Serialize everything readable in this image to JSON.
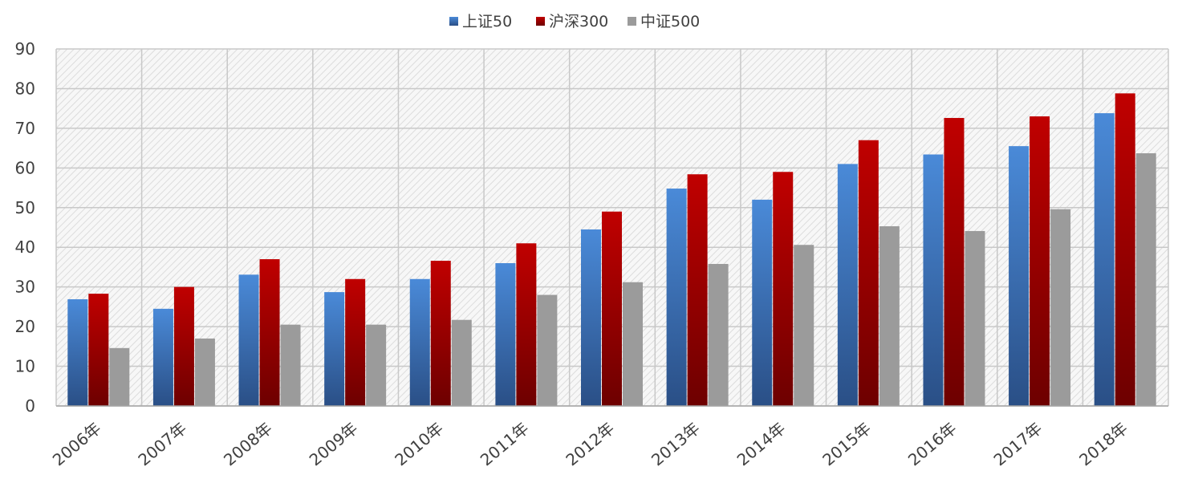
{
  "chart_data": {
    "type": "bar",
    "title": "",
    "xlabel": "",
    "ylabel": "",
    "categories": [
      "2006年",
      "2007年",
      "2008年",
      "2009年",
      "2010年",
      "2011年",
      "2012年",
      "2013年",
      "2014年",
      "2015年",
      "2016年",
      "2017年",
      "2018年"
    ],
    "series": [
      {
        "name": "上证50",
        "color": "#4a8ad8",
        "color_bottom": "#2a4f86",
        "values": [
          26.9,
          24.5,
          33.1,
          28.7,
          32.0,
          36.0,
          44.5,
          54.8,
          52.0,
          61.0,
          63.4,
          65.5,
          73.8
        ]
      },
      {
        "name": "沪深300",
        "color": "#c00000",
        "color_bottom": "#6d0000",
        "values": [
          28.3,
          30.0,
          37.0,
          32.0,
          36.6,
          41.0,
          49.0,
          58.4,
          59.0,
          67.0,
          72.6,
          73.0,
          78.8
        ]
      },
      {
        "name": "中证500",
        "color": "#9b9b9b",
        "color_bottom": "#9b9b9b",
        "values": [
          14.6,
          17.0,
          20.5,
          20.5,
          21.7,
          28.0,
          31.2,
          35.8,
          40.6,
          45.3,
          44.1,
          49.6,
          63.7
        ]
      }
    ],
    "ylim": [
      0,
      90
    ],
    "yticks": [
      0,
      10,
      20,
      30,
      40,
      50,
      60,
      70,
      80,
      90
    ],
    "grid": true,
    "legend_position": "top"
  }
}
